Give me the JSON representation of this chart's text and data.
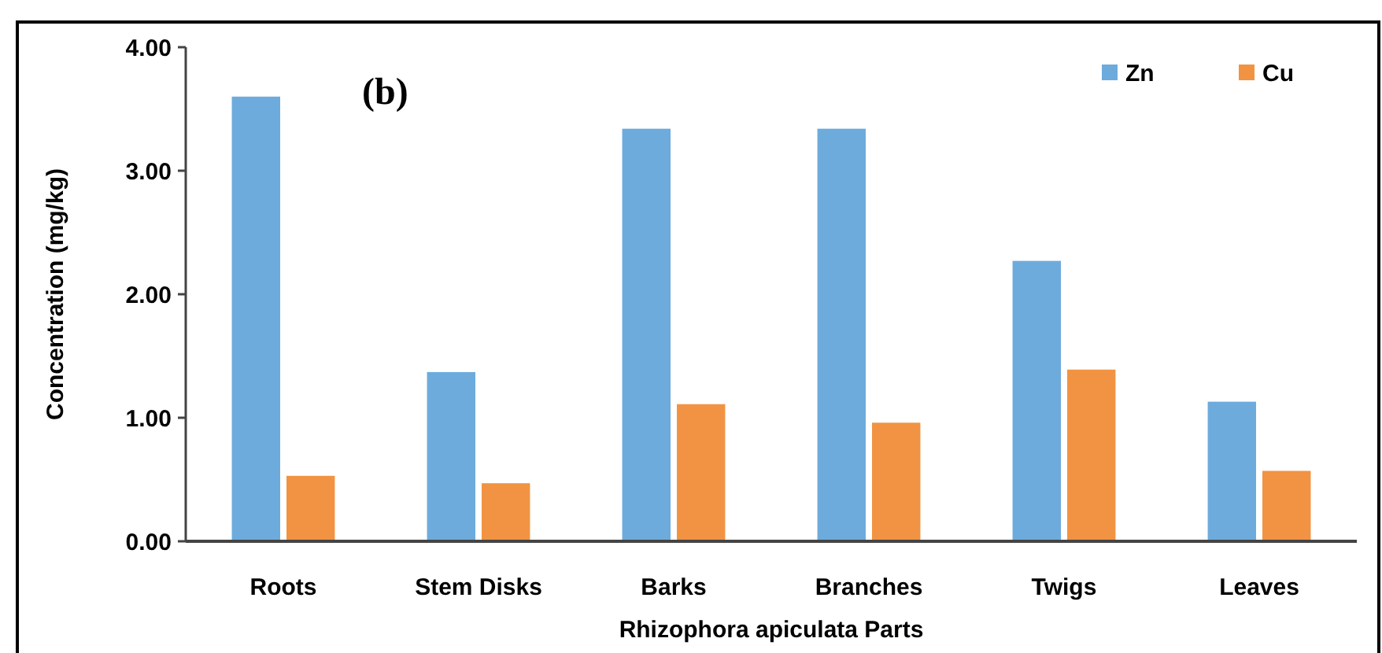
{
  "chart_data": {
    "type": "bar",
    "ylabel": "Concentration (mg/kg)",
    "xlabel": "Rhizophora apiculata Parts",
    "annotations": [
      "(b)"
    ],
    "categories": [
      "Roots",
      "Stem Disks",
      "Barks",
      "Branches",
      "Twigs",
      "Leaves"
    ],
    "series": [
      {
        "name": "Zn",
        "color": "#6dabdc",
        "values": [
          3.6,
          1.37,
          3.34,
          3.34,
          2.27,
          1.13
        ]
      },
      {
        "name": "Cu",
        "color": "#f19342",
        "values": [
          0.53,
          0.47,
          1.11,
          0.96,
          1.39,
          0.57
        ]
      }
    ],
    "ylim": [
      0,
      4
    ],
    "yticks": [
      {
        "value": 0,
        "label": "0.00"
      },
      {
        "value": 1,
        "label": "1.00"
      },
      {
        "value": 2,
        "label": "2.00"
      },
      {
        "value": 3,
        "label": "3.00"
      },
      {
        "value": 4,
        "label": "4.00"
      }
    ],
    "grid": false,
    "legend": "top right"
  }
}
